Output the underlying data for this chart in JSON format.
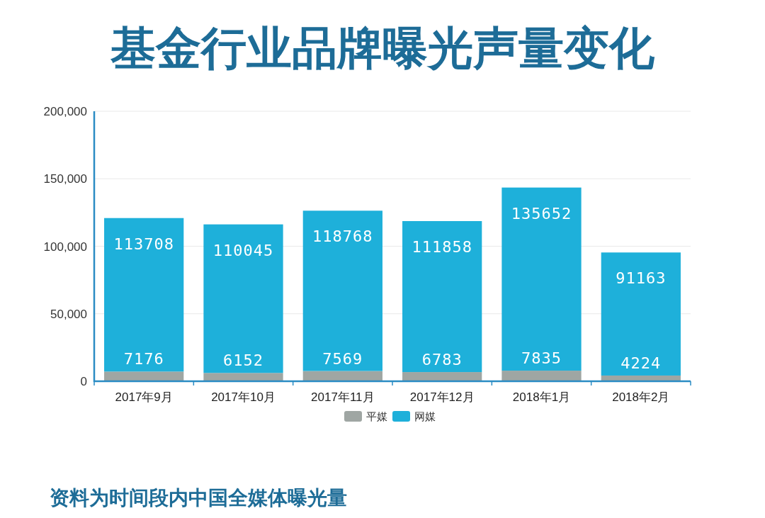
{
  "chart_data": {
    "type": "bar",
    "title": "基金行业品牌曝光声量变化",
    "categories": [
      "2017年9月",
      "2017年10月",
      "2017年11月",
      "2017年12月",
      "2018年1月",
      "2018年2月"
    ],
    "series": [
      {
        "name": "平媒",
        "color": "#9fa6a3",
        "values": [
          7176,
          6152,
          7569,
          6783,
          7835,
          4224
        ]
      },
      {
        "name": "网媒",
        "color": "#1eb0da",
        "values": [
          113708,
          110045,
          118768,
          111858,
          135652,
          91163
        ]
      }
    ],
    "stacked": true,
    "ylim": [
      0,
      200000
    ],
    "yticks": [
      0,
      {
        "value": 50000,
        "label": "50,000"
      },
      {
        "value": 100000,
        "label": "100,000"
      },
      {
        "value": 150000,
        "label": "150,000"
      },
      {
        "value": 200000,
        "label": "200,000"
      }
    ],
    "grid": "y",
    "legend": "bottom",
    "data_labels": true,
    "annotations": [
      "资料为时间段内中国全媒体曝光量"
    ]
  }
}
